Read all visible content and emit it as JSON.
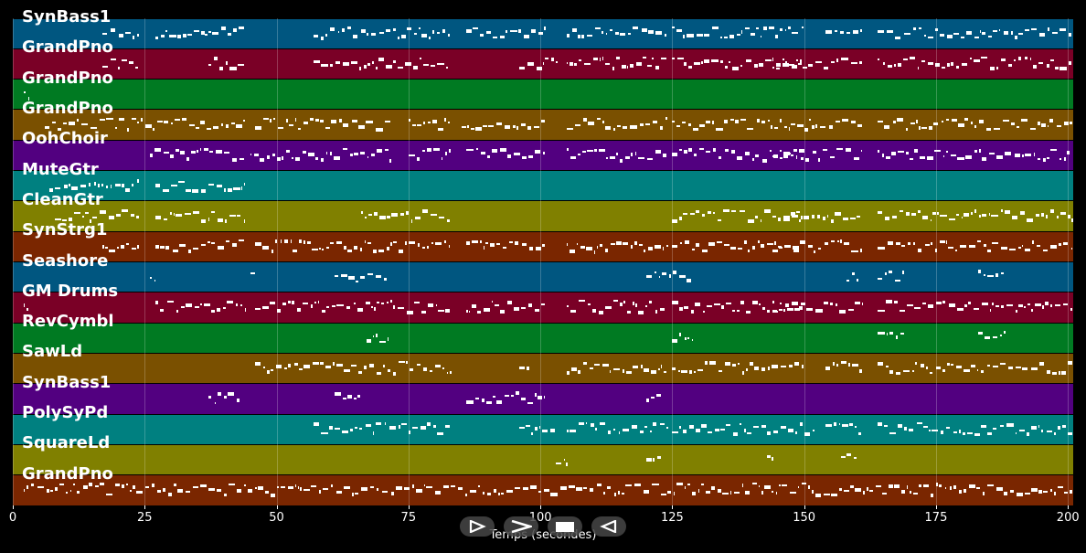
{
  "chart_data": {
    "type": "piano-roll",
    "xlabel": "Temps (secondes)",
    "xlim": [
      0,
      201
    ],
    "x_ticks": [
      0,
      25,
      50,
      75,
      100,
      125,
      150,
      175,
      200
    ],
    "grid": true,
    "tracks": [
      {
        "name": "SynBass1",
        "color": "#005680",
        "segments": [
          [
            17,
            24
          ],
          [
            27,
            44
          ],
          [
            57,
            72
          ],
          [
            72,
            83
          ],
          [
            86,
            101
          ],
          [
            105,
            124
          ],
          [
            125,
            150
          ],
          [
            154,
            161
          ],
          [
            164,
            201
          ]
        ]
      },
      {
        "name": "GrandPno",
        "color": "#7a0026",
        "segments": [
          [
            17,
            24
          ],
          [
            37,
            44
          ],
          [
            57,
            72
          ],
          [
            72,
            83
          ],
          [
            96,
            103
          ],
          [
            105,
            124
          ],
          [
            125,
            150
          ],
          [
            144,
            161
          ],
          [
            164,
            201
          ]
        ]
      },
      {
        "name": "GrandPno",
        "color": "#007a22",
        "segments": [
          [
            2,
            3
          ]
        ]
      },
      {
        "name": "GrandPno",
        "color": "#7a5000",
        "segments": [
          [
            6,
            44
          ],
          [
            46,
            72
          ],
          [
            75,
            83
          ],
          [
            85,
            101
          ],
          [
            105,
            124
          ],
          [
            125,
            161
          ],
          [
            164,
            201
          ]
        ]
      },
      {
        "name": "OohChoir",
        "color": "#520080",
        "segments": [
          [
            26,
            44
          ],
          [
            45,
            72
          ],
          [
            75,
            83
          ],
          [
            86,
            101
          ],
          [
            105,
            124
          ],
          [
            125,
            150
          ],
          [
            144,
            161
          ],
          [
            164,
            201
          ]
        ]
      },
      {
        "name": "MuteGtr",
        "color": "#008080",
        "segments": [
          [
            7,
            24
          ],
          [
            27,
            44
          ]
        ]
      },
      {
        "name": "CleanGtr",
        "color": "#808000",
        "segments": [
          [
            8,
            24
          ],
          [
            27,
            44
          ],
          [
            66,
            83
          ],
          [
            125,
            150
          ],
          [
            146,
            161
          ],
          [
            164,
            201
          ]
        ]
      },
      {
        "name": "SynStrg1",
        "color": "#7a2600",
        "segments": [
          [
            17,
            24
          ],
          [
            27,
            44
          ],
          [
            46,
            72
          ],
          [
            72,
            83
          ],
          [
            86,
            101
          ],
          [
            105,
            124
          ],
          [
            125,
            150
          ],
          [
            144,
            161
          ],
          [
            164,
            201
          ]
        ]
      },
      {
        "name": "Seashore",
        "color": "#005680",
        "segments": [
          [
            26,
            27
          ],
          [
            45,
            46
          ],
          [
            61,
            71
          ],
          [
            120,
            129
          ],
          [
            158,
            160
          ],
          [
            164,
            169
          ],
          [
            183,
            188
          ]
        ]
      },
      {
        "name": "GM Drums",
        "color": "#7a0026",
        "segments": [
          [
            2,
            3
          ],
          [
            27,
            44
          ],
          [
            46,
            72
          ],
          [
            72,
            83
          ],
          [
            86,
            101
          ],
          [
            105,
            124
          ],
          [
            125,
            150
          ],
          [
            144,
            161
          ],
          [
            164,
            201
          ]
        ]
      },
      {
        "name": "RevCymbl",
        "color": "#007a22",
        "segments": [
          [
            67,
            71
          ],
          [
            125,
            129
          ],
          [
            164,
            169
          ],
          [
            183,
            188
          ]
        ]
      },
      {
        "name": "SawLd",
        "color": "#7a5000",
        "segments": [
          [
            46,
            72
          ],
          [
            72,
            83
          ],
          [
            96,
            98
          ],
          [
            105,
            124
          ],
          [
            125,
            150
          ],
          [
            154,
            161
          ],
          [
            164,
            201
          ]
        ]
      },
      {
        "name": "SynBass1",
        "color": "#520080",
        "segments": [
          [
            37,
            43
          ],
          [
            61,
            66
          ],
          [
            86,
            101
          ],
          [
            120,
            123
          ]
        ]
      },
      {
        "name": "PolySyPd",
        "color": "#008080",
        "segments": [
          [
            57,
            83
          ],
          [
            96,
            103
          ],
          [
            105,
            124
          ],
          [
            125,
            150
          ],
          [
            150,
            152
          ],
          [
            154,
            161
          ],
          [
            164,
            201
          ]
        ]
      },
      {
        "name": "SquareLd",
        "color": "#808000",
        "segments": [
          [
            103,
            105
          ],
          [
            120,
            123
          ],
          [
            143,
            144
          ],
          [
            157,
            160
          ]
        ]
      },
      {
        "name": "GrandPno",
        "color": "#7a2600",
        "segments": [
          [
            2,
            201
          ]
        ]
      }
    ]
  },
  "controls": [
    {
      "name": "step-forward-button",
      "icon": "step-forward-icon"
    },
    {
      "name": "play-button",
      "icon": "play-icon"
    },
    {
      "name": "stop-button",
      "icon": "stop-icon"
    },
    {
      "name": "rewind-button",
      "icon": "rewind-icon"
    }
  ]
}
